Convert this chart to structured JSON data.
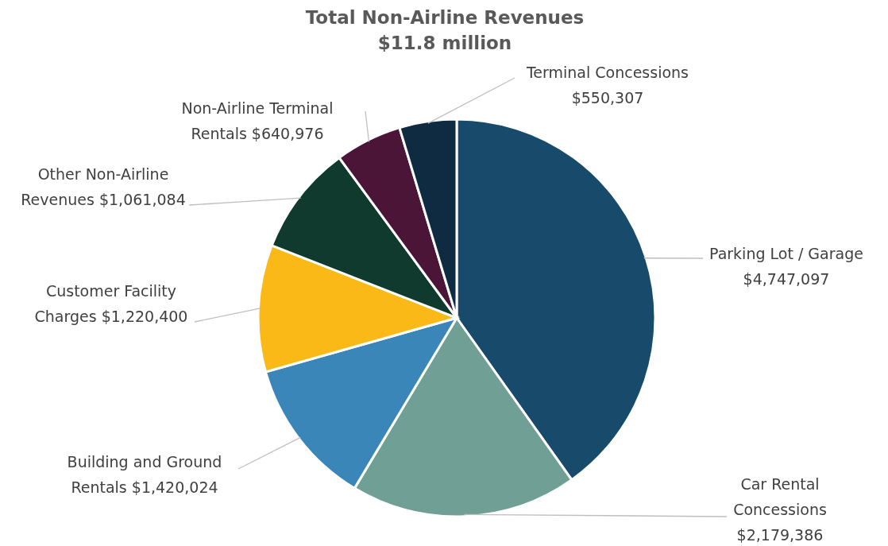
{
  "chart_data": {
    "type": "pie",
    "title": "Total Non-Airline Revenues",
    "subtitle": "$11.8 million",
    "categories": [
      "Parking Lot / Garage",
      "Car Rental Concessions",
      "Building and Ground Rentals",
      "Customer Facility Charges",
      "Other Non-Airline Revenues",
      "Non-Airline Terminal Rentals",
      "Terminal Concessions"
    ],
    "values": [
      4747097,
      2179386,
      1420024,
      1220400,
      1061084,
      640976,
      550307
    ],
    "value_labels": [
      "$4,747,097",
      "$2,179,386",
      "$1,420,024",
      "$1,220,400",
      "$1,061,084",
      "$640,976",
      "$550,307"
    ],
    "colors": [
      "#174a6b",
      "#70a095",
      "#3a86b8",
      "#fbb917",
      "#0f3a2d",
      "#4b1538",
      "#0e2b42"
    ]
  }
}
